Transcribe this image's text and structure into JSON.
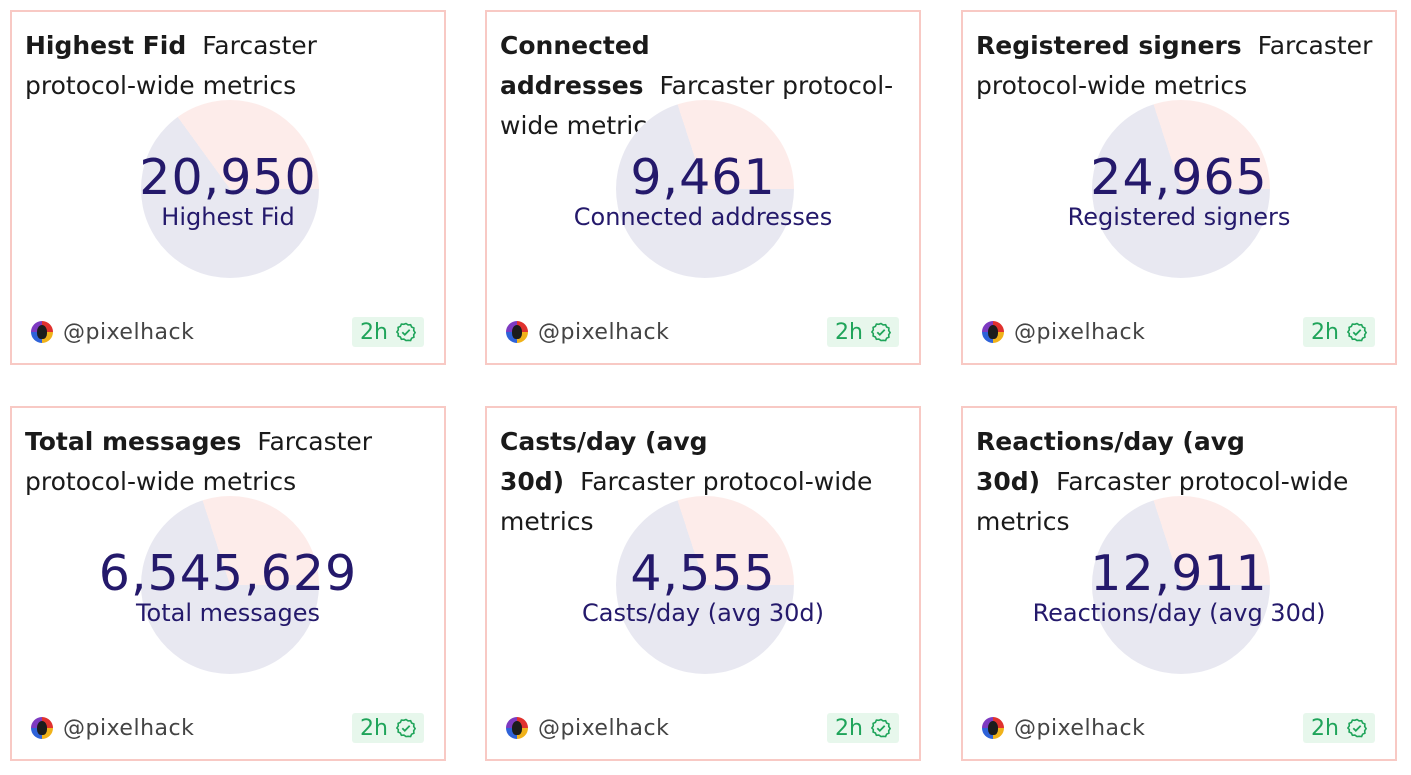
{
  "cards": [
    {
      "title": "Highest Fid",
      "description": "Farcaster protocol-wide metrics",
      "value": "20,950",
      "label": "Highest Fid",
      "user": "@pixelhack",
      "age": "2h",
      "share": 0.65
    },
    {
      "title": "Connected addresses",
      "description": "Farcaster protocol-wide metrics",
      "value": "9,461",
      "label": "Connected addresses",
      "user": "@pixelhack",
      "age": "2h",
      "share": 0.7
    },
    {
      "title": "Registered signers",
      "description": "Farcaster protocol-wide metrics",
      "value": "24,965",
      "label": "Registered signers",
      "user": "@pixelhack",
      "age": "2h",
      "share": 0.7
    },
    {
      "title": "Total messages",
      "description": "Farcaster protocol-wide metrics",
      "value": "6,545,629",
      "label": "Total messages",
      "user": "@pixelhack",
      "age": "2h",
      "share": 0.7
    },
    {
      "title": "Casts/day (avg 30d)",
      "description": "Farcaster protocol-wide metrics",
      "value": "4,555",
      "label": "Casts/day (avg 30d)",
      "user": "@pixelhack",
      "age": "2h",
      "share": 0.7
    },
    {
      "title": "Reactions/day (avg 30d)",
      "description": "Farcaster protocol-wide metrics",
      "value": "12,911",
      "label": "Reactions/day (avg 30d)",
      "user": "@pixelhack",
      "age": "2h",
      "share": 0.7
    }
  ],
  "colors": {
    "primary_slice": "#e8e8f1",
    "secondary_slice": "#fdecea"
  }
}
